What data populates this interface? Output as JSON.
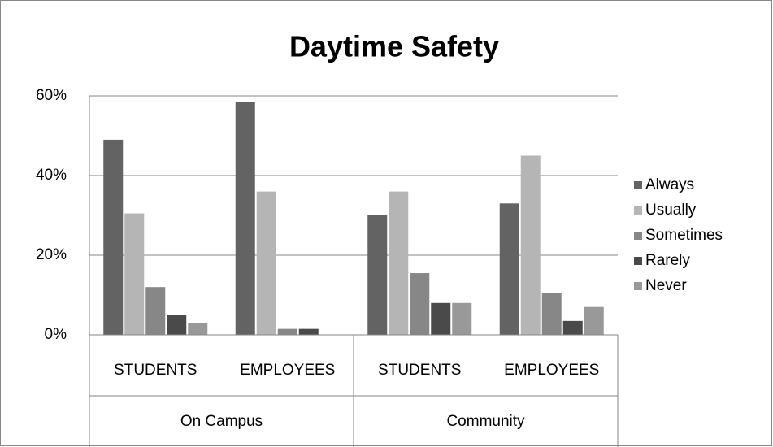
{
  "chart_data": {
    "type": "bar",
    "title": "Daytime Safety",
    "categories": [
      "STUDENTS",
      "EMPLOYEES",
      "STUDENTS",
      "EMPLOYEES"
    ],
    "category_groups": [
      "On Campus",
      "Community"
    ],
    "series": [
      {
        "name": "Always",
        "color": "#636363",
        "values": [
          49,
          58.5,
          30,
          33
        ]
      },
      {
        "name": "Usually",
        "color": "#b5b5b5",
        "values": [
          30.5,
          36,
          36,
          45
        ]
      },
      {
        "name": "Sometimes",
        "color": "#878787",
        "values": [
          12,
          1.5,
          15.5,
          10.5
        ]
      },
      {
        "name": "Rarely",
        "color": "#4a4a4a",
        "values": [
          5,
          1.5,
          8,
          3.5
        ]
      },
      {
        "name": "Never",
        "color": "#999999",
        "values": [
          3,
          0,
          8,
          7
        ]
      }
    ],
    "ylim": [
      0,
      60
    ],
    "yticks": [
      {
        "value": 0,
        "label": "0%"
      },
      {
        "value": 20,
        "label": "20%"
      },
      {
        "value": 40,
        "label": "40%"
      },
      {
        "value": 60,
        "label": "60%"
      }
    ],
    "grid": true,
    "legend": "right"
  }
}
